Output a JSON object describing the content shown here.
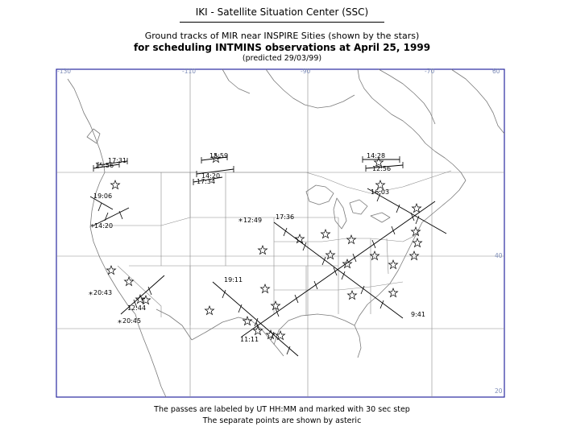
{
  "header": {
    "title": "IKI - Satellite Situation Center (SSC)",
    "subtitle": "Ground tracks of MIR near INSPIRE Sities (shown by the stars)",
    "heading": "for scheduling INTMINS observations at April 25, 1999",
    "predicted": "(predicted 29/03/99)"
  },
  "footer": {
    "line1": "The passes are labeled by UT HH:MM and marked with 30 sec step",
    "line2": "The separate points are shown by asteric"
  },
  "axes": {
    "lon_labels": [
      "-130",
      "-110",
      "-90",
      "-70"
    ],
    "lat_labels": [
      "60",
      "40",
      "20"
    ]
  },
  "colors": {
    "frame": "#2a2aa0",
    "grid": "#8c8c8c",
    "coast": "#7a7a7a",
    "tick_text": "#7e8db8"
  },
  "passes": [
    {
      "time": "17:31",
      "marker": "tick"
    },
    {
      "time": "15:56",
      "marker": "tick"
    },
    {
      "time": "19:06",
      "marker": "tick"
    },
    {
      "time": "14:20",
      "marker": "asterisk"
    },
    {
      "time": "15:59",
      "marker": "tick"
    },
    {
      "time": "14:20",
      "marker": "tick"
    },
    {
      "time": "17:34",
      "marker": "tick"
    },
    {
      "time": "12:49",
      "marker": "asterisk"
    },
    {
      "time": "17:36",
      "marker": "tick"
    },
    {
      "time": "14:28",
      "marker": "tick"
    },
    {
      "time": "12:56",
      "marker": "tick"
    },
    {
      "time": "16:03",
      "marker": "tick"
    },
    {
      "time": "19:11",
      "marker": "tick"
    },
    {
      "time": "20:43",
      "marker": "asterisk"
    },
    {
      "time": "12:44",
      "marker": "tick"
    },
    {
      "time": "20:45",
      "marker": "asterisk"
    },
    {
      "time": "11:11",
      "marker": "tick"
    },
    {
      "time": "9:41",
      "marker": "tick"
    }
  ]
}
